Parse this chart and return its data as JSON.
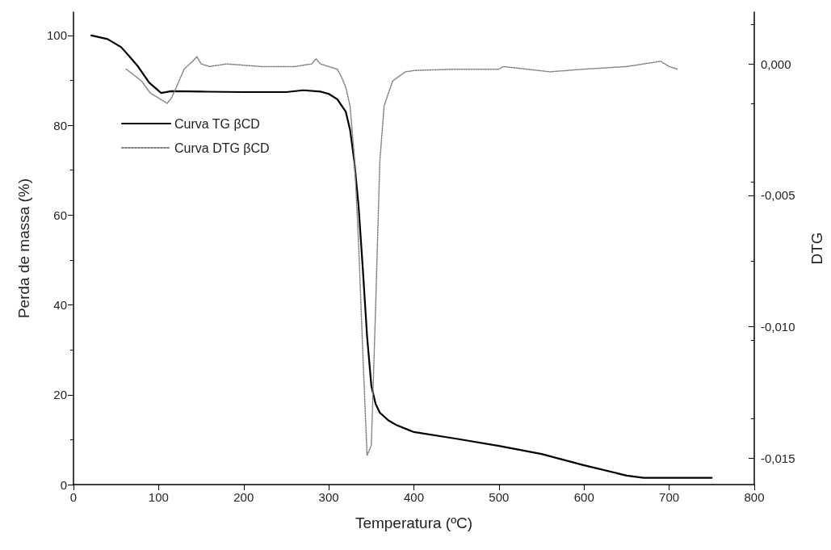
{
  "chart_data": {
    "type": "line",
    "xlabel": "Temperatura (ºC)",
    "ylabel": "Perda de massa (%)",
    "y2label": "DTG",
    "xlim": [
      0,
      800
    ],
    "xticks": [
      0,
      100,
      200,
      300,
      400,
      500,
      600,
      700,
      800
    ],
    "ylim": [
      0,
      105.2
    ],
    "yticks": [
      0,
      20,
      40,
      60,
      80,
      100
    ],
    "y2lim": [
      -0.016,
      0.00197
    ],
    "y2ticks": [
      {
        "value": 0,
        "label": "0,000"
      },
      {
        "value": -0.005,
        "label": "-0,005"
      },
      {
        "value": -0.01,
        "label": "-0,010"
      },
      {
        "value": -0.015,
        "label": "-0,015"
      }
    ],
    "legend": "top left",
    "marker": "none",
    "grid": false,
    "series": [
      {
        "name": "Curva TG βCD",
        "color": "#000000",
        "line_style": "solid",
        "x": [
          21,
          40,
          56,
          65,
          75,
          89,
          103,
          115,
          150,
          200,
          250,
          270,
          290,
          300,
          310,
          320,
          325,
          330,
          335,
          340,
          345,
          350,
          355,
          360,
          370,
          380,
          400,
          450,
          500,
          550,
          600,
          650,
          670,
          700,
          750
        ],
        "values": [
          100,
          99.2,
          97.4,
          95.5,
          93.3,
          89.5,
          87.2,
          87.6,
          87.5,
          87.4,
          87.4,
          87.8,
          87.5,
          87,
          85.8,
          83,
          79,
          72,
          62,
          48,
          33,
          22,
          18,
          16,
          14.3,
          13.2,
          11.7,
          10.2,
          8.6,
          6.8,
          4.3,
          2,
          1.5,
          1.5,
          1.5
        ]
      },
      {
        "name": "Curva DTG βCD",
        "color": "#808080",
        "line_style": "dotted",
        "axis": "y2",
        "x": [
          62,
          70,
          80,
          90,
          100,
          110,
          115,
          120,
          130,
          140,
          145,
          150,
          160,
          180,
          220,
          260,
          280,
          285,
          290,
          300,
          310,
          315,
          320,
          325,
          330,
          335,
          340,
          345,
          350,
          355,
          360,
          365,
          375,
          390,
          400,
          450,
          500,
          505,
          560,
          600,
          650,
          690,
          700,
          710
        ],
        "values": [
          -0.0002,
          -0.0004,
          -0.00065,
          -0.0011,
          -0.0013,
          -0.0015,
          -0.0013,
          -0.00095,
          -0.0002,
          0.0001,
          0.00028,
          0.0,
          -0.0001,
          0.0,
          -0.0001,
          -0.0001,
          0.0,
          0.0002,
          0.0,
          -0.0001,
          -0.0002,
          -0.0005,
          -0.0009,
          -0.0016,
          -0.0035,
          -0.0068,
          -0.011,
          -0.0149,
          -0.0145,
          -0.0093,
          -0.0037,
          -0.0016,
          -0.00065,
          -0.0003,
          -0.00025,
          -0.0002,
          -0.0002,
          -0.0001,
          -0.0003,
          -0.0002,
          -0.0001,
          0.0001,
          -0.0001,
          -0.0002
        ]
      }
    ]
  }
}
